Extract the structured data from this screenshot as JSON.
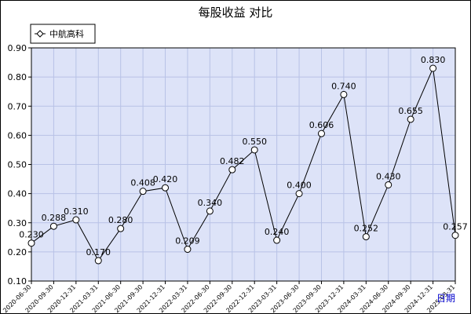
{
  "chart_data": {
    "type": "line",
    "title": "每股收益  对比",
    "xlabel": "日期",
    "ylabel": "",
    "ylim": [
      0.1,
      0.9
    ],
    "yticks": [
      "0.90",
      "0.80",
      "0.70",
      "0.60",
      "0.50",
      "0.40",
      "0.30",
      "0.20",
      "0.10"
    ],
    "grid": true,
    "legend_position": "top-left",
    "categories": [
      "2020-06-30",
      "2020-09-30",
      "2020-12-31",
      "2021-03-31",
      "2021-06-30",
      "2021-09-30",
      "2021-12-31",
      "2022-03-31",
      "2022-06-30",
      "2022-09-30",
      "2022-12-31",
      "2023-03-31",
      "2023-06-30",
      "2023-09-30",
      "2023-12-31",
      "2024-03-31",
      "2024-06-30",
      "2024-09-30",
      "2024-12-31",
      "2025-03-31"
    ],
    "series": [
      {
        "name": "中航高科",
        "values": [
          0.23,
          0.288,
          0.31,
          0.17,
          0.28,
          0.408,
          0.42,
          0.209,
          0.34,
          0.482,
          0.55,
          0.24,
          0.4,
          0.606,
          0.74,
          0.252,
          0.43,
          0.655,
          0.83,
          0.257
        ],
        "labels": [
          "0.230",
          "0.288",
          "0.310",
          "0.170",
          "0.280",
          "0.408",
          "0.420",
          "0.209",
          "0.340",
          "0.482",
          "0.550",
          "0.240",
          "0.400",
          "0.606",
          "0.740",
          "0.252",
          "0.430",
          "0.655",
          "0.830",
          "0.257"
        ]
      }
    ]
  },
  "colors": {
    "plot_background": "#dde3f8",
    "grid": "#b8c2e6",
    "line": "#000000",
    "marker_fill": "#ffffff",
    "xlabel": "#0000cc"
  }
}
